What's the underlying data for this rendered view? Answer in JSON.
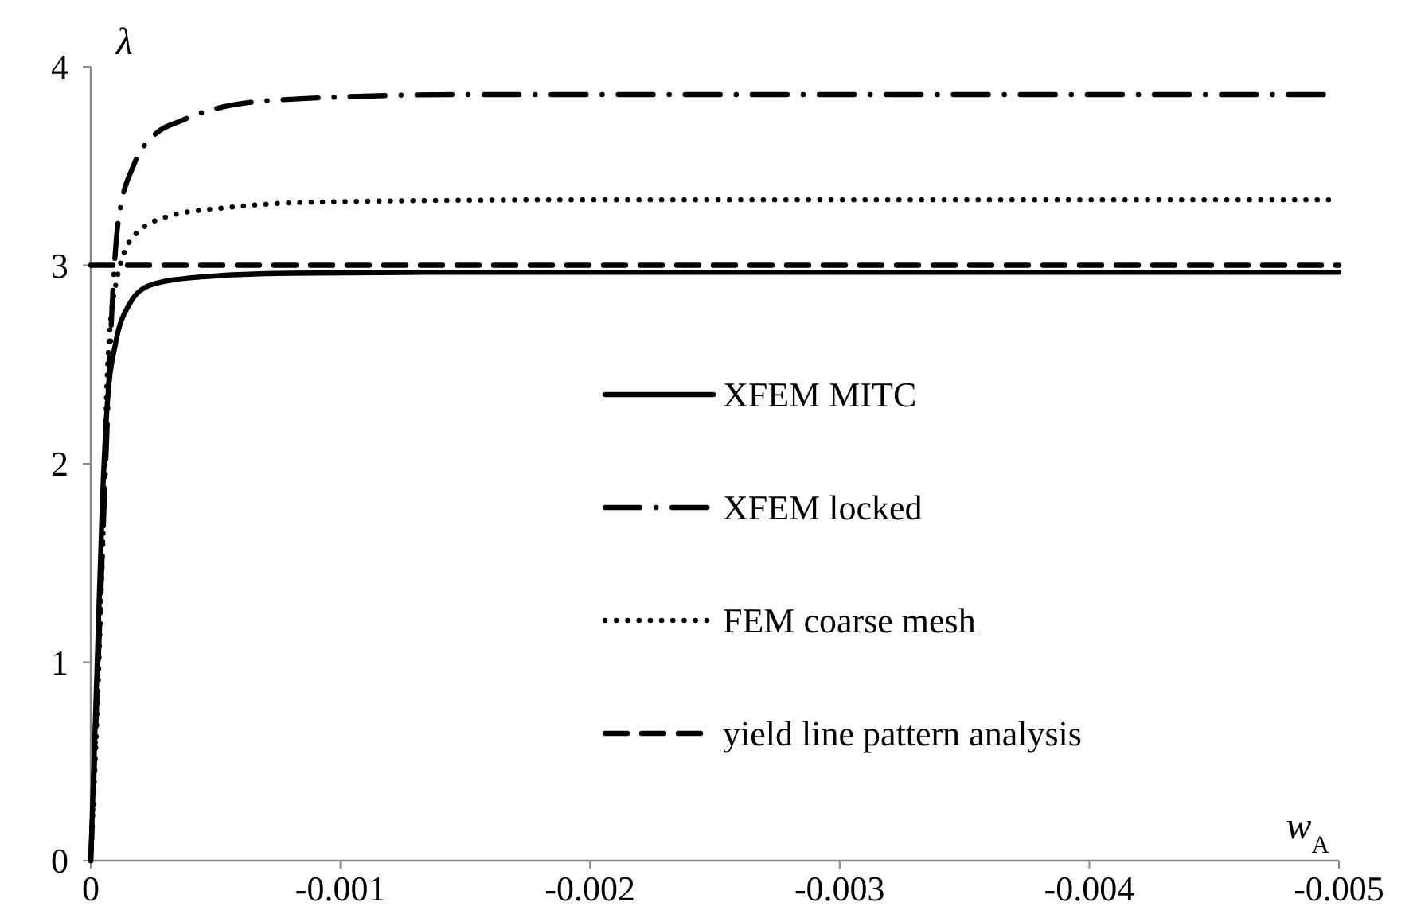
{
  "chart_data": {
    "type": "line",
    "xlabel": "w$_{A}$",
    "ylabel": "λ",
    "xlim": [
      0,
      -0.005
    ],
    "xticks": [
      0,
      -0.001,
      -0.002,
      -0.003,
      -0.004,
      -0.005
    ],
    "ylim": [
      0,
      4
    ],
    "yticks": [
      0,
      1,
      2,
      3,
      4
    ],
    "grid": false,
    "legend": "right",
    "marker": "none",
    "series": [
      {
        "name": "XFEM MITC",
        "color": "#000000",
        "line_style": "solid",
        "x": [
          0,
          -2.55e-05,
          -4.7e-05,
          -6.8e-05,
          -0.0001,
          -0.000153,
          -0.000238,
          -0.00043,
          -0.0008,
          -0.0015,
          -0.005
        ],
        "values": [
          0,
          0.98,
          1.82,
          2.33,
          2.61,
          2.8,
          2.9,
          2.94,
          2.96,
          2.965,
          2.965
        ]
      },
      {
        "name": "XFEM locked",
        "color": "#000000",
        "line_style": "dashdot",
        "x": [
          0,
          -3e-05,
          -6e-05,
          -9e-05,
          -0.00011,
          -0.000174,
          -0.00025,
          -0.000366,
          -0.00058,
          -0.00086,
          -0.0015,
          -0.005
        ],
        "values": [
          0,
          1.0,
          2.0,
          2.9,
          3.22,
          3.51,
          3.65,
          3.73,
          3.81,
          3.84,
          3.86,
          3.86
        ]
      },
      {
        "name": "FEM coarse mesh",
        "color": "#000000",
        "line_style": "dotted",
        "x": [
          0,
          -3e-05,
          -4.7e-05,
          -6.8e-05,
          -0.0001,
          -0.000174,
          -0.00032,
          -0.00054,
          -0.00096,
          -0.002,
          -0.005
        ],
        "values": [
          0,
          0.9,
          1.54,
          2.5,
          2.9,
          3.15,
          3.25,
          3.29,
          3.32,
          3.33,
          3.33
        ]
      },
      {
        "name": "yield line pattern analysis",
        "color": "#000000",
        "line_style": "dashed",
        "x": [
          0,
          -0.005
        ],
        "values": [
          3,
          3
        ]
      }
    ]
  }
}
